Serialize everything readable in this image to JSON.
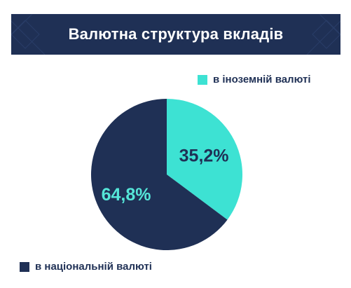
{
  "header": {
    "title": "Валютна структура вкладів"
  },
  "colors": {
    "header_bg": "#1f3055",
    "national": "#1f3055",
    "foreign": "#3de2d3",
    "label_on_dark": "#55e6d8",
    "label_on_light": "#1f3055"
  },
  "chart_data": {
    "type": "pie",
    "title": "Валютна структура вкладів",
    "slices": [
      {
        "label": "в іноземній валюті",
        "value": 35.2,
        "display": "35,2%",
        "color": "#3de2d3"
      },
      {
        "label": "в національній валюті",
        "value": 64.8,
        "display": "64,8%",
        "color": "#1f3055"
      }
    ],
    "start": "12 o'clock",
    "direction": "clockwise",
    "legend_placement": "top-right and bottom-left"
  }
}
